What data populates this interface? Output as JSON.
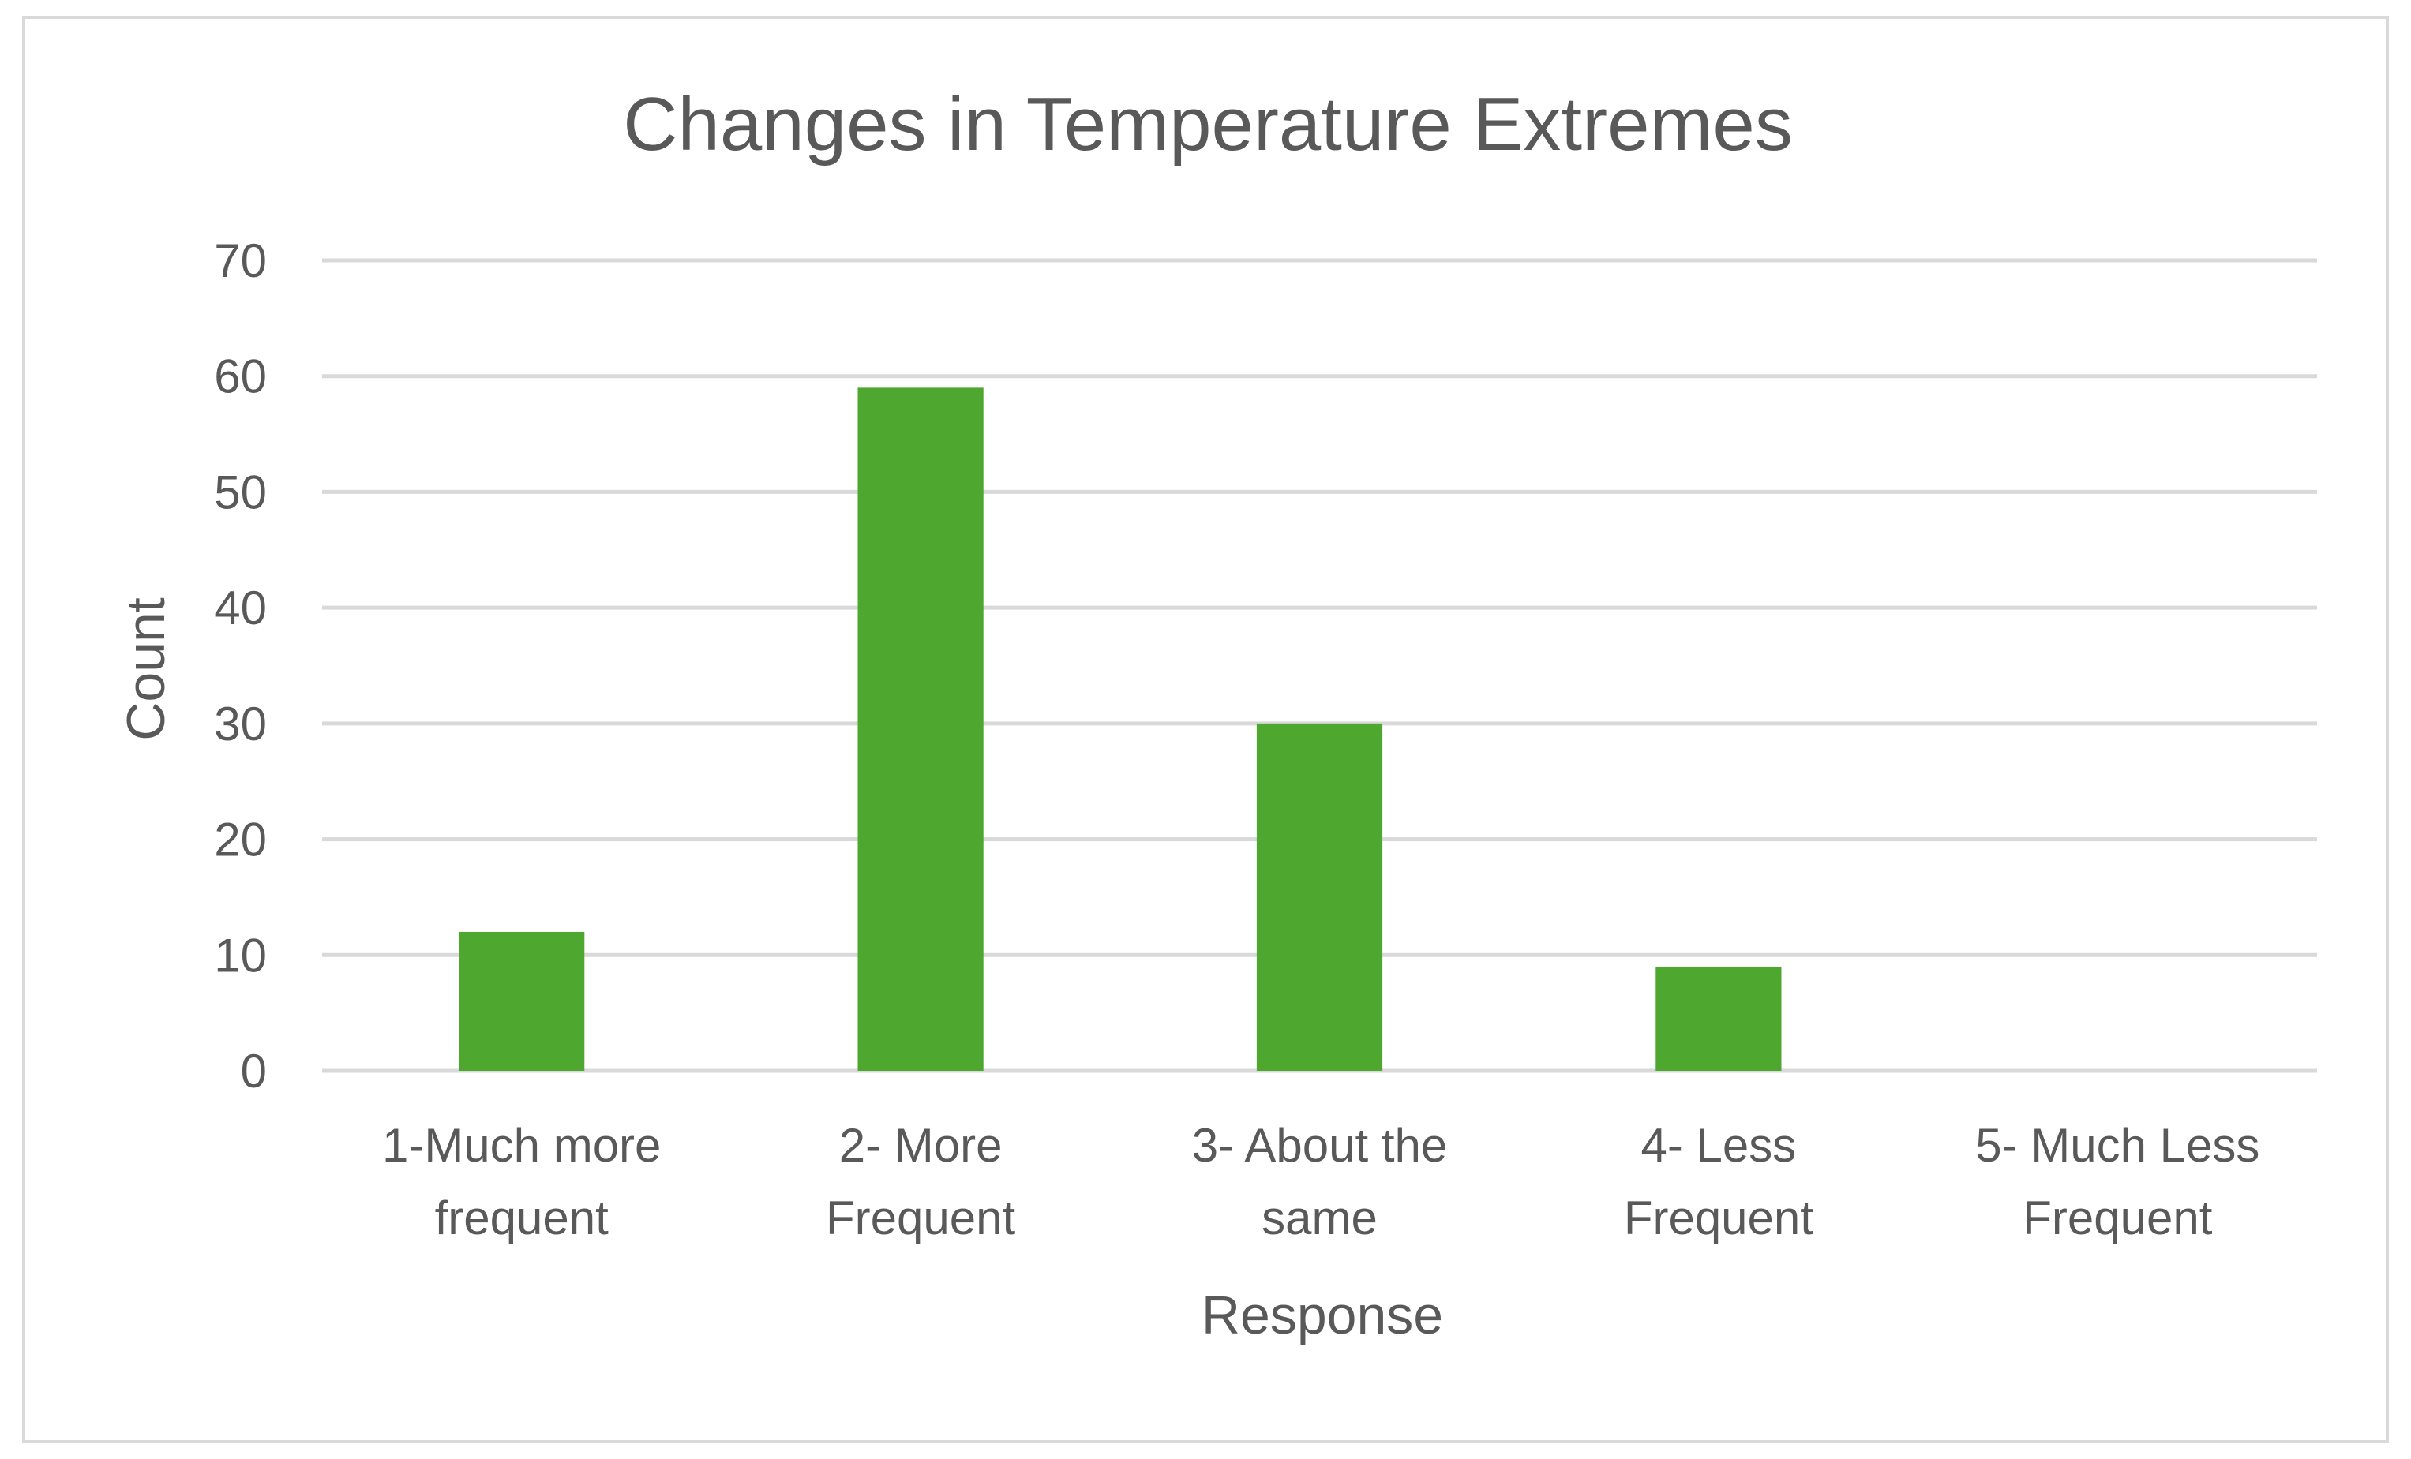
{
  "chart_data": {
    "type": "bar",
    "title": "Changes in Temperature Extremes",
    "xlabel": "Response",
    "ylabel": "Count",
    "categories": [
      [
        "1-Much more",
        "frequent"
      ],
      [
        "2- More",
        "Frequent"
      ],
      [
        "3- About the",
        "same"
      ],
      [
        "4- Less",
        "Frequent"
      ],
      [
        "5- Much Less",
        "Frequent"
      ]
    ],
    "values": [
      12,
      59,
      30,
      9,
      0
    ],
    "ylim": [
      0,
      70
    ],
    "yticks": [
      0,
      10,
      20,
      30,
      40,
      50,
      60,
      70
    ],
    "grid": true,
    "legend": "none",
    "colors": {
      "bar": "#4EA72E",
      "text": "#595959",
      "grid": "#D9D9D9"
    }
  }
}
